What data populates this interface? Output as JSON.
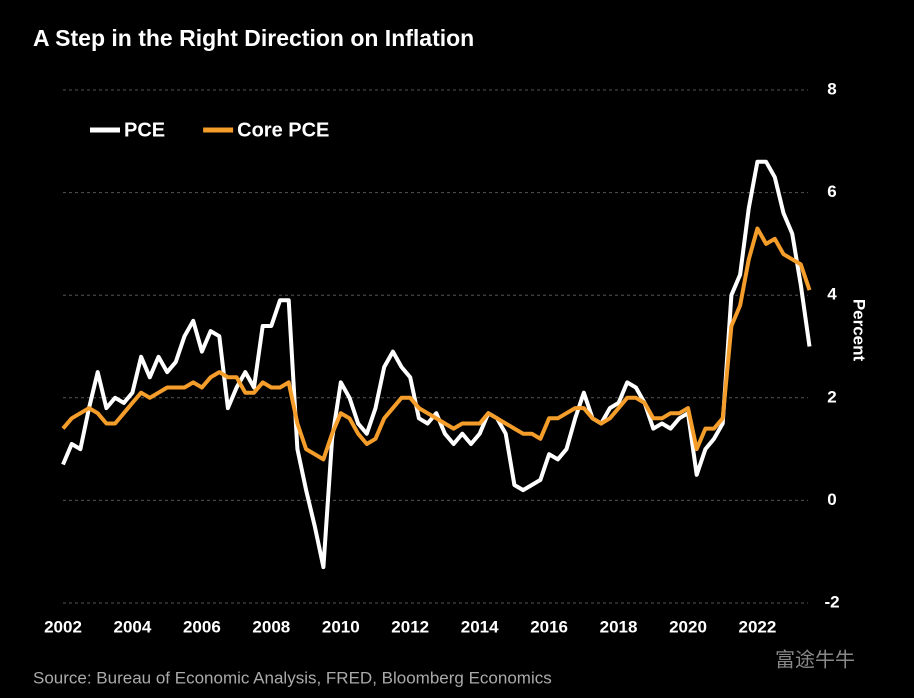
{
  "chart_data": {
    "type": "line",
    "title": "A Step in the Right Direction on Inflation",
    "y_label": "Percent",
    "source": "Source: Bureau of Economic Analysis, FRED, Bloomberg Economics",
    "watermark": "富途牛牛",
    "x": [
      2002,
      2002.25,
      2002.5,
      2002.75,
      2003,
      2003.25,
      2003.5,
      2003.75,
      2004,
      2004.25,
      2004.5,
      2004.75,
      2005,
      2005.25,
      2005.5,
      2005.75,
      2006,
      2006.25,
      2006.5,
      2006.75,
      2007,
      2007.25,
      2007.5,
      2007.75,
      2008,
      2008.25,
      2008.5,
      2008.75,
      2009,
      2009.25,
      2009.5,
      2009.75,
      2010,
      2010.25,
      2010.5,
      2010.75,
      2011,
      2011.25,
      2011.5,
      2011.75,
      2012,
      2012.25,
      2012.5,
      2012.75,
      2013,
      2013.25,
      2013.5,
      2013.75,
      2014,
      2014.25,
      2014.5,
      2014.75,
      2015,
      2015.25,
      2015.5,
      2015.75,
      2016,
      2016.25,
      2016.5,
      2016.75,
      2017,
      2017.25,
      2017.5,
      2017.75,
      2018,
      2018.25,
      2018.5,
      2018.75,
      2019,
      2019.25,
      2019.5,
      2019.75,
      2020,
      2020.25,
      2020.5,
      2020.75,
      2021,
      2021.25,
      2021.5,
      2021.75,
      2022,
      2022.25,
      2022.5,
      2022.75,
      2023,
      2023.25,
      2023.5
    ],
    "series": [
      {
        "name": "PCE",
        "color": "#ffffff",
        "values": [
          0.7,
          1.1,
          1.0,
          1.8,
          2.5,
          1.8,
          2.0,
          1.9,
          2.1,
          2.8,
          2.4,
          2.8,
          2.5,
          2.7,
          3.2,
          3.5,
          2.9,
          3.3,
          3.2,
          1.8,
          2.2,
          2.5,
          2.2,
          3.4,
          3.4,
          3.9,
          3.9,
          1.0,
          0.2,
          -0.5,
          -1.3,
          1.2,
          2.3,
          2.0,
          1.5,
          1.3,
          1.8,
          2.6,
          2.9,
          2.6,
          2.4,
          1.6,
          1.5,
          1.7,
          1.3,
          1.1,
          1.3,
          1.1,
          1.3,
          1.7,
          1.6,
          1.3,
          0.3,
          0.2,
          0.3,
          0.4,
          0.9,
          0.8,
          1.0,
          1.6,
          2.1,
          1.6,
          1.5,
          1.8,
          1.9,
          2.3,
          2.2,
          1.9,
          1.4,
          1.5,
          1.4,
          1.6,
          1.7,
          0.5,
          1.0,
          1.2,
          1.5,
          4.0,
          4.4,
          5.7,
          6.6,
          6.6,
          6.3,
          5.6,
          5.2,
          4.2,
          3.0
        ]
      },
      {
        "name": "Core PCE",
        "color": "#f59d2a",
        "values": [
          1.4,
          1.6,
          1.7,
          1.8,
          1.7,
          1.5,
          1.5,
          1.7,
          1.9,
          2.1,
          2.0,
          2.1,
          2.2,
          2.2,
          2.2,
          2.3,
          2.2,
          2.4,
          2.5,
          2.4,
          2.4,
          2.1,
          2.1,
          2.3,
          2.2,
          2.2,
          2.3,
          1.5,
          1.0,
          0.9,
          0.8,
          1.3,
          1.7,
          1.6,
          1.3,
          1.1,
          1.2,
          1.6,
          1.8,
          2.0,
          2.0,
          1.8,
          1.7,
          1.6,
          1.5,
          1.4,
          1.5,
          1.5,
          1.5,
          1.7,
          1.6,
          1.5,
          1.4,
          1.3,
          1.3,
          1.2,
          1.6,
          1.6,
          1.7,
          1.8,
          1.8,
          1.6,
          1.5,
          1.6,
          1.8,
          2.0,
          2.0,
          1.9,
          1.6,
          1.6,
          1.7,
          1.7,
          1.8,
          1.0,
          1.4,
          1.4,
          1.6,
          3.4,
          3.8,
          4.7,
          5.3,
          5.0,
          5.1,
          4.8,
          4.7,
          4.6,
          4.1
        ]
      }
    ],
    "xlim": [
      2002,
      2023.6
    ],
    "xticks": [
      2002,
      2004,
      2006,
      2008,
      2010,
      2012,
      2014,
      2016,
      2018,
      2020,
      2022
    ],
    "ylim": [
      -2,
      8
    ],
    "yticks": [
      -2,
      0,
      2,
      4,
      6,
      8
    ],
    "grid": true
  }
}
